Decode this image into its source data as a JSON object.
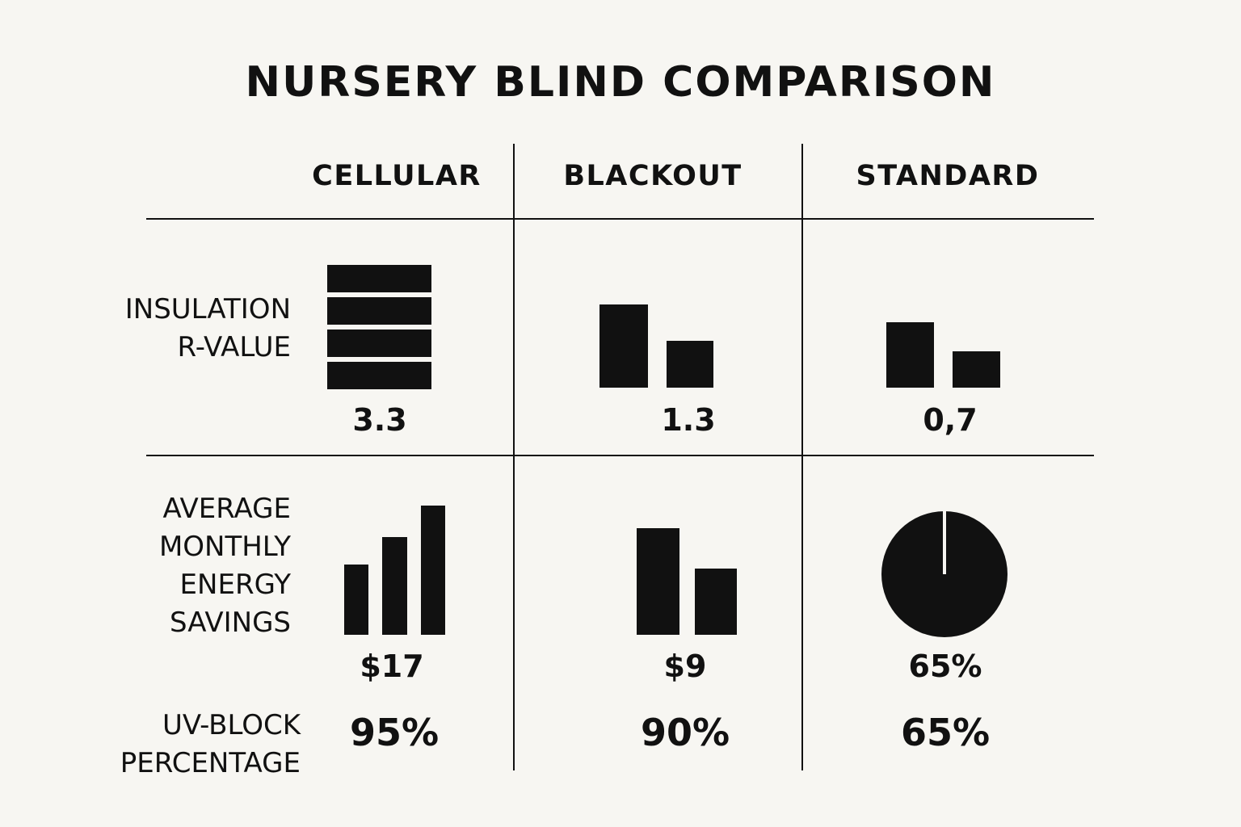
{
  "title": "NURSERY BLIND COMPARISON",
  "columns": [
    "CELLULAR",
    "BLACKOUT",
    "STANDARD"
  ],
  "rows": {
    "insulation": {
      "label": "INSULATION\nR-VALUE",
      "values": [
        "3.3",
        "1.3",
        "0,7"
      ]
    },
    "energy": {
      "label": "AVERAGE\nMONTHLY\nENERGY\nSAVINGS",
      "values": [
        "$17",
        "$9",
        "65%"
      ]
    },
    "uv": {
      "label": "UV-BLOCK\nPERCENTAGE",
      "values": [
        "95%",
        "90%",
        "65%"
      ]
    }
  },
  "chart_data": {
    "type": "table",
    "title": "NURSERY BLIND COMPARISON",
    "columns": [
      "CELLULAR",
      "BLACKOUT",
      "STANDARD"
    ],
    "rows": [
      {
        "label": "INSULATION R-VALUE",
        "values": [
          3.3,
          1.3,
          0.7
        ]
      },
      {
        "label": "AVERAGE MONTHLY ENERGY SAVINGS",
        "values": [
          "$17",
          "$9",
          "65%"
        ]
      },
      {
        "label": "UV-BLOCK PERCENTAGE",
        "values": [
          95,
          90,
          65
        ]
      }
    ]
  },
  "colors": {
    "background": "#f7f6f2",
    "ink": "#111111"
  },
  "icons": {
    "cellular_insulation": "stacked-bars-icon",
    "blackout_insulation": "two-bars-icon",
    "standard_insulation": "two-bars-icon",
    "cellular_energy": "bar-chart-icon",
    "blackout_energy": "two-bars-icon",
    "standard_energy": "pie-chart-icon"
  }
}
